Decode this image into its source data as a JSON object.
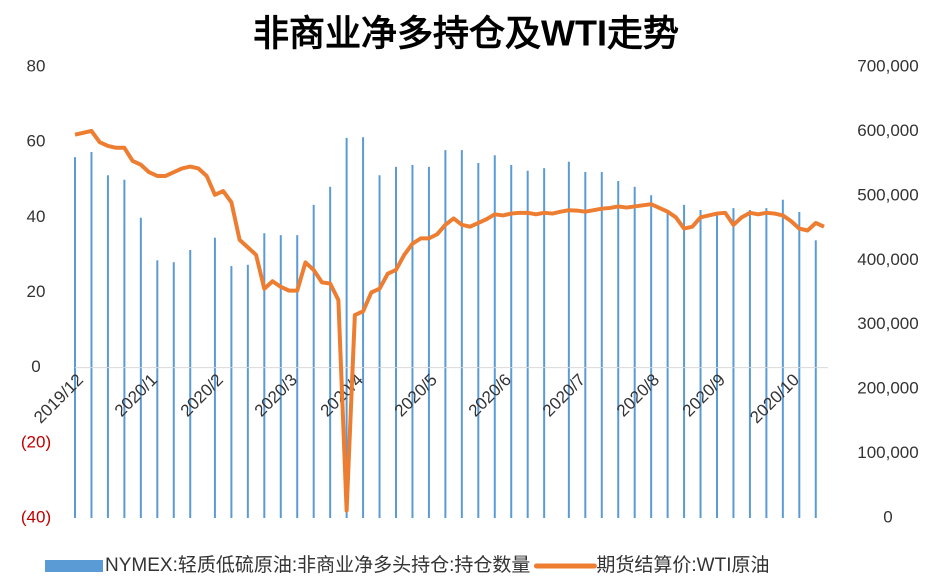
{
  "chart_data": {
    "type": "bar-line",
    "title": "非商业净多持仓及WTI走势",
    "categories": [
      "2019/12",
      null,
      null,
      null,
      null,
      null,
      null,
      null,
      null,
      "2020/1",
      null,
      null,
      null,
      null,
      null,
      null,
      null,
      "2020/2",
      null,
      null,
      null,
      null,
      null,
      null,
      null,
      null,
      "2020/3",
      null,
      null,
      null,
      null,
      null,
      null,
      null,
      "2020/4",
      null,
      null,
      null,
      null,
      null,
      null,
      null,
      null,
      "2020/5",
      null,
      null,
      null,
      null,
      null,
      null,
      null,
      null,
      "2020/6",
      null,
      null,
      null,
      null,
      null,
      null,
      null,
      null,
      "2020/7",
      null,
      null,
      null,
      null,
      null,
      null,
      null,
      null,
      "2020/8",
      null,
      null,
      null,
      null,
      null,
      null,
      null,
      "2020/9",
      null,
      null,
      null,
      null,
      null,
      null,
      null,
      null,
      "2020/10",
      null,
      null,
      null,
      null
    ],
    "series": [
      {
        "name": "NYMEX:轻质低硫原油:非商业净多头持仓:持仓数量",
        "type": "bar",
        "axis": "y2",
        "color": "#5b9bd5",
        "values": [
          560000,
          null,
          568000,
          null,
          532000,
          null,
          525000,
          null,
          466000,
          null,
          400000,
          null,
          397000,
          null,
          416000,
          null,
          null,
          435000,
          null,
          391000,
          null,
          393000,
          null,
          442000,
          null,
          439000,
          null,
          439000,
          null,
          486000,
          null,
          514000,
          null,
          590000,
          null,
          591000,
          null,
          532000,
          null,
          545000,
          null,
          548000,
          null,
          545000,
          null,
          571000,
          null,
          571000,
          null,
          551000,
          null,
          563000,
          null,
          548000,
          null,
          539000,
          null,
          543000,
          null,
          null,
          553000,
          null,
          537000,
          null,
          537000,
          null,
          523000,
          null,
          514000,
          null,
          501000,
          null,
          478000,
          null,
          486000,
          null,
          478000,
          null,
          470000,
          null,
          481000,
          null,
          478000,
          null,
          481000,
          null,
          494000,
          null,
          475000,
          null,
          431000,
          null
        ]
      },
      {
        "name": "期货结算价:WTI原油",
        "type": "line",
        "axis": "y",
        "color": "#ed7d31",
        "values": [
          62,
          62.5,
          63,
          60,
          59,
          58.5,
          58.5,
          55,
          54,
          52,
          51,
          51,
          52,
          53,
          53.5,
          53,
          51,
          46,
          47,
          44,
          34,
          32,
          30,
          21,
          23,
          21.5,
          20.5,
          20.5,
          28,
          26,
          22.7,
          22.4,
          18,
          -38,
          14,
          15,
          20,
          21,
          25,
          26,
          30,
          33,
          34.4,
          34.4,
          35.5,
          38,
          39.7,
          38,
          37.5,
          38.5,
          39.5,
          40.8,
          40.5,
          41,
          41.2,
          41.2,
          40.8,
          41.2,
          41,
          41.5,
          41.9,
          41.8,
          41.5,
          41.9,
          42.3,
          42.5,
          42.9,
          42.6,
          42.9,
          43.2,
          43.5,
          42.5,
          41.5,
          40,
          37,
          37.5,
          40,
          40.5,
          41,
          41.2,
          38,
          40,
          41.2,
          40.8,
          41.2,
          41,
          40.5,
          39,
          37,
          36.5,
          38.5,
          37.5
        ]
      }
    ],
    "ylim": [
      -40,
      80
    ],
    "yticks": [
      {
        "value": -40,
        "label": "(40)"
      },
      {
        "value": -20,
        "label": "(20)"
      },
      0,
      20,
      40,
      60,
      80
    ],
    "negative_tick_color": "#c00000",
    "y2lim": [
      0,
      700000
    ],
    "y2ticks": [
      0,
      {
        "value": 100000,
        "label": "100,000"
      },
      {
        "value": 200000,
        "label": "200,000"
      },
      {
        "value": 300000,
        "label": "300,000"
      },
      {
        "value": 400000,
        "label": "400,000"
      },
      {
        "value": 500000,
        "label": "500,000"
      },
      {
        "value": 600000,
        "label": "600,000"
      },
      {
        "value": 700000,
        "label": "700,000"
      }
    ],
    "legend": "bottom"
  }
}
